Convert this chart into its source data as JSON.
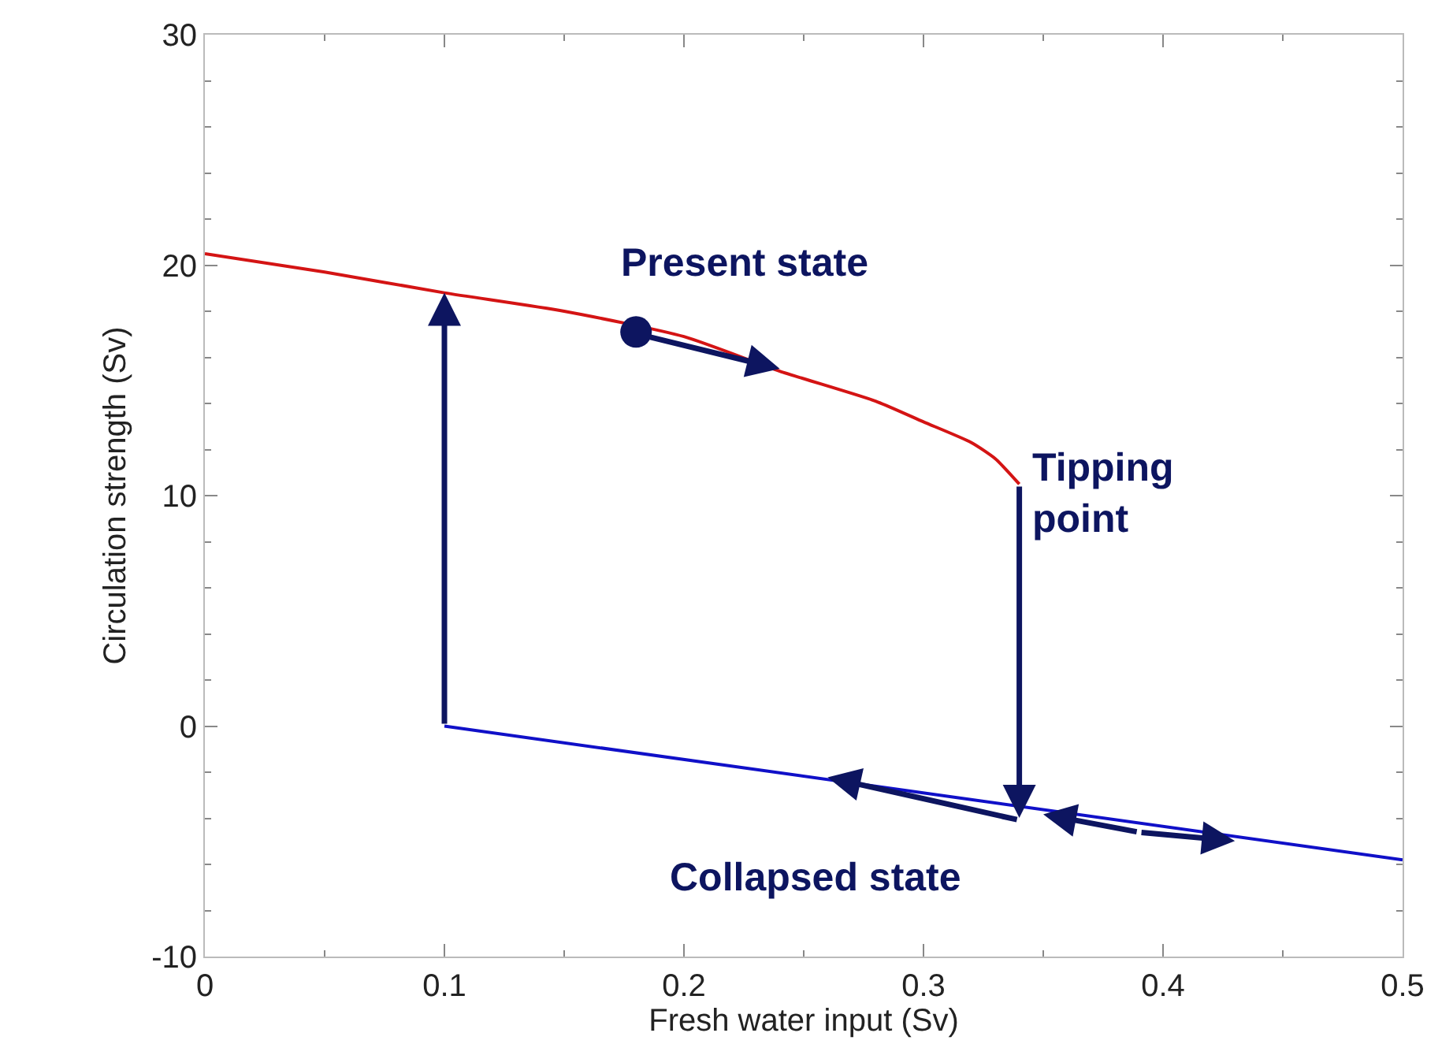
{
  "chart_data": {
    "type": "line",
    "xlabel": "Fresh water input (Sv)",
    "ylabel": "Circulation strength (Sv)",
    "xlim": [
      0,
      0.5
    ],
    "xticks": [
      0,
      0.1,
      0.2,
      0.3,
      0.4,
      0.5
    ],
    "ylim": [
      -10,
      30
    ],
    "yticks": [
      -10,
      0,
      10,
      20,
      30
    ],
    "series": [
      {
        "color": "#d41414",
        "x": [
          0,
          0.05,
          0.1,
          0.15,
          0.2,
          0.24,
          0.28,
          0.3,
          0.32,
          0.33,
          0.34
        ],
        "values": [
          20.5,
          19.7,
          18.8,
          18.0,
          16.9,
          15.4,
          14.1,
          13.2,
          12.3,
          11.6,
          10.5
        ]
      },
      {
        "color": "#1010c8",
        "x": [
          0.1,
          0.5
        ],
        "values": [
          0,
          -5.8
        ]
      },
      {
        "type": "scatter",
        "color": "#0d1560",
        "marker": "circle",
        "x": [
          0.18
        ],
        "values": [
          17.1
        ]
      }
    ],
    "annotations": [
      {
        "text": "Present state",
        "x": 0.18,
        "y": 17.1
      },
      {
        "text": "Tipping\npoint",
        "x": 0.34,
        "y": 10.5
      },
      "Collapsed state"
    ]
  }
}
